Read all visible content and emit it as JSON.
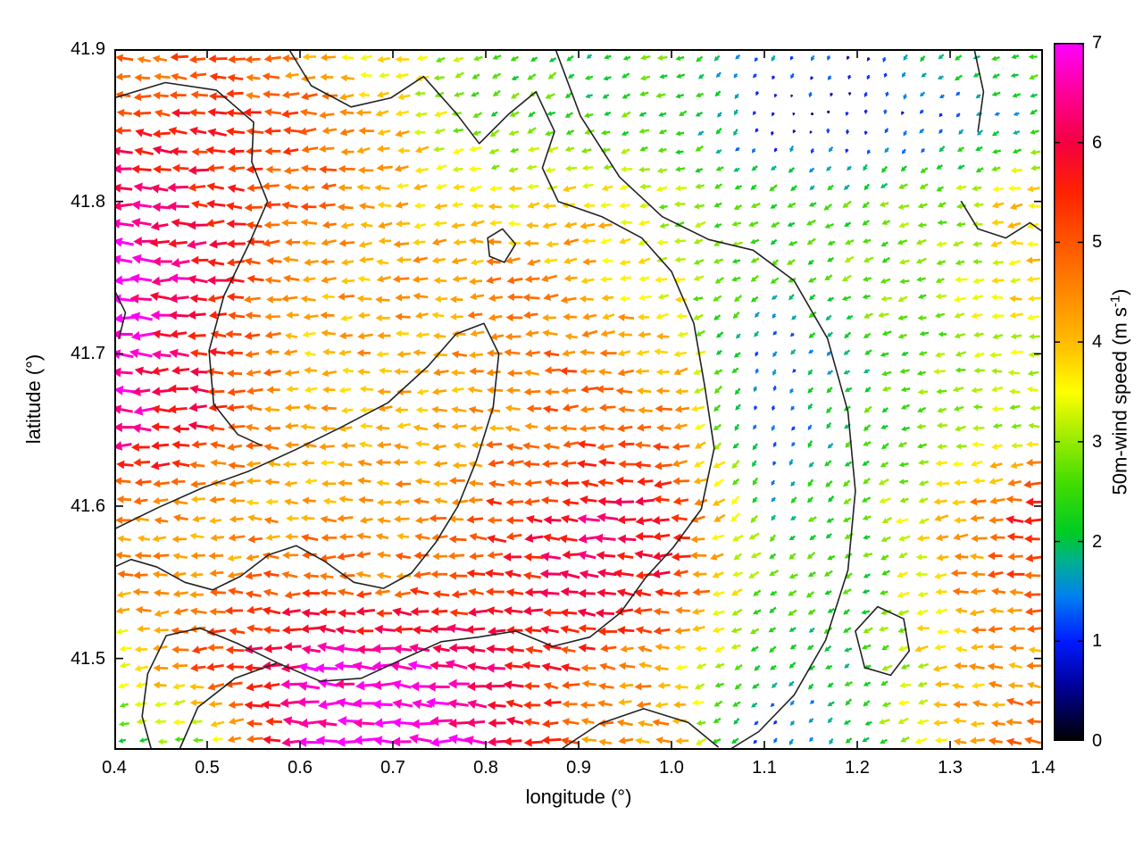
{
  "chart_data": {
    "type": "quiver",
    "title": "",
    "xlabel": "longitude (°)",
    "ylabel": "latitude (°)",
    "xlim": [
      0.4,
      1.4
    ],
    "ylim": [
      41.44,
      41.9
    ],
    "x_ticks": [
      0.4,
      0.5,
      0.6,
      0.7,
      0.8,
      0.9,
      1.0,
      1.1,
      1.2,
      1.3,
      1.4
    ],
    "x_tick_labels": [
      "0.4",
      "0.5",
      "0.6",
      "0.7",
      "0.8",
      "0.9",
      "1.0",
      "1.1",
      "1.2",
      "1.3",
      "1.4"
    ],
    "y_ticks": [
      41.5,
      41.6,
      41.7,
      41.8,
      41.9
    ],
    "y_tick_labels": [
      "41.5",
      "41.6",
      "41.7",
      "41.8",
      "41.9"
    ],
    "grid_on": false,
    "colorbar": {
      "label_main": "50m-wind speed (m s",
      "label_sup": "-1",
      "label_end": ")",
      "min": 0,
      "max": 7,
      "ticks": [
        0,
        1,
        2,
        3,
        4,
        5,
        6,
        7
      ],
      "tick_labels": [
        "0",
        "1",
        "2",
        "3",
        "4",
        "5",
        "6",
        "7"
      ],
      "palette": [
        [
          0.0,
          "#000000"
        ],
        [
          0.55,
          "#000099"
        ],
        [
          1.0,
          "#001aff"
        ],
        [
          1.45,
          "#0080f0"
        ],
        [
          1.8,
          "#00b090"
        ],
        [
          2.1,
          "#00cc22"
        ],
        [
          2.6,
          "#44dd00"
        ],
        [
          3.1,
          "#aaee00"
        ],
        [
          3.5,
          "#ffff00"
        ],
        [
          4.0,
          "#ffbb00"
        ],
        [
          4.5,
          "#ff8800"
        ],
        [
          5.0,
          "#ff5500"
        ],
        [
          5.5,
          "#ff2200"
        ],
        [
          6.0,
          "#f40040"
        ],
        [
          6.5,
          "#ff0099"
        ],
        [
          7.0,
          "#ff00ff"
        ]
      ]
    },
    "grid_lons": [
      0.4,
      0.5,
      0.6,
      0.7,
      0.8,
      0.9,
      1.0,
      1.1,
      1.2,
      1.3,
      1.4
    ],
    "grid_lats": [
      41.9,
      41.85,
      41.8,
      41.75,
      41.7,
      41.65,
      41.6,
      41.55,
      41.5,
      41.45
    ],
    "speed_grid": [
      [
        4.5,
        5.0,
        4.2,
        3.5,
        2.5,
        2.2,
        2.5,
        1.5,
        1.0,
        2.0,
        2.6
      ],
      [
        5.5,
        5.6,
        5.0,
        4.0,
        2.6,
        2.4,
        2.5,
        0.8,
        0.5,
        1.3,
        2.1
      ],
      [
        6.6,
        5.6,
        5.0,
        4.2,
        3.6,
        4.0,
        3.0,
        2.4,
        2.4,
        3.1,
        4.1
      ],
      [
        6.9,
        6.0,
        4.3,
        4.2,
        4.5,
        4.2,
        3.3,
        2.2,
        2.8,
        3.0,
        4.0
      ],
      [
        6.8,
        5.6,
        4.1,
        4.2,
        4.5,
        4.8,
        4.0,
        1.0,
        2.2,
        3.0,
        3.3
      ],
      [
        6.6,
        5.5,
        4.2,
        4.0,
        4.3,
        5.0,
        4.8,
        1.2,
        2.3,
        3.0,
        3.1
      ],
      [
        4.6,
        4.3,
        4.2,
        4.3,
        5.0,
        6.0,
        5.5,
        2.0,
        2.5,
        4.0,
        6.0
      ],
      [
        4.5,
        4.3,
        5.0,
        4.6,
        5.2,
        6.2,
        5.5,
        2.8,
        2.3,
        4.2,
        5.2
      ],
      [
        3.3,
        5.2,
        6.5,
        6.8,
        6.3,
        5.2,
        4.2,
        2.0,
        2.3,
        4.0,
        4.3
      ],
      [
        2.3,
        3.2,
        6.8,
        7.0,
        6.5,
        4.6,
        4.2,
        1.0,
        2.1,
        4.1,
        5.0
      ]
    ],
    "angle_grid": [
      [
        172,
        176,
        180,
        184,
        205,
        215,
        195,
        235,
        255,
        205,
        190
      ],
      [
        174,
        177,
        181,
        186,
        208,
        200,
        196,
        250,
        265,
        225,
        200
      ],
      [
        176,
        179,
        180,
        183,
        186,
        186,
        192,
        205,
        212,
        196,
        184
      ],
      [
        178,
        180,
        180,
        181,
        183,
        186,
        191,
        215,
        202,
        190,
        183
      ],
      [
        180,
        180,
        180,
        180,
        181,
        183,
        186,
        245,
        212,
        190,
        182
      ],
      [
        180,
        180,
        180,
        180,
        180,
        181,
        183,
        252,
        216,
        189,
        181
      ],
      [
        181,
        180,
        179,
        179,
        179,
        178,
        181,
        232,
        211,
        186,
        178
      ],
      [
        183,
        181,
        178,
        178,
        177,
        176,
        179,
        212,
        206,
        183,
        176
      ],
      [
        186,
        183,
        178,
        176,
        175,
        175,
        178,
        222,
        210,
        181,
        175
      ],
      [
        191,
        186,
        181,
        178,
        175,
        176,
        181,
        242,
        221,
        179,
        172
      ]
    ],
    "arrow_cols": 50,
    "arrow_rows": 38,
    "jitter": {
      "speed": 0.45,
      "angle": 12,
      "pos": 4,
      "seed": 42
    },
    "contours": [
      [
        [
          0.4,
          41.868
        ],
        [
          0.455,
          41.878
        ],
        [
          0.51,
          41.873
        ],
        [
          0.55,
          41.852
        ],
        [
          0.548,
          41.826
        ],
        [
          0.565,
          41.8
        ],
        [
          0.545,
          41.772
        ],
        [
          0.518,
          41.738
        ],
        [
          0.502,
          41.702
        ],
        [
          0.507,
          41.667
        ],
        [
          0.533,
          41.647
        ],
        [
          0.558,
          41.64
        ]
      ],
      [
        [
          0.588,
          41.9
        ],
        [
          0.612,
          41.876
        ],
        [
          0.655,
          41.862
        ],
        [
          0.698,
          41.868
        ],
        [
          0.733,
          41.882
        ],
        [
          0.768,
          41.858
        ],
        [
          0.793,
          41.838
        ],
        [
          0.824,
          41.857
        ],
        [
          0.854,
          41.872
        ],
        [
          0.874,
          41.846
        ],
        [
          0.861,
          41.822
        ],
        [
          0.878,
          41.8
        ],
        [
          0.925,
          41.79
        ],
        [
          0.968,
          41.776
        ],
        [
          1.0,
          41.754
        ],
        [
          1.024,
          41.72
        ],
        [
          1.036,
          41.678
        ],
        [
          1.046,
          41.638
        ],
        [
          1.032,
          41.598
        ],
        [
          1.002,
          41.573
        ],
        [
          0.972,
          41.553
        ],
        [
          0.945,
          41.53
        ],
        [
          0.912,
          41.514
        ],
        [
          0.872,
          41.508
        ],
        [
          0.832,
          41.518
        ],
        [
          0.792,
          41.514
        ],
        [
          0.752,
          41.511
        ],
        [
          0.712,
          41.5
        ],
        [
          0.666,
          41.487
        ],
        [
          0.622,
          41.485
        ],
        [
          0.576,
          41.497
        ],
        [
          0.532,
          41.51
        ],
        [
          0.492,
          41.52
        ],
        [
          0.456,
          41.515
        ],
        [
          0.436,
          41.49
        ],
        [
          0.43,
          41.462
        ],
        [
          0.44,
          41.44
        ]
      ],
      [
        [
          0.4,
          41.585
        ],
        [
          0.447,
          41.599
        ],
        [
          0.495,
          41.612
        ],
        [
          0.545,
          41.623
        ],
        [
          0.595,
          41.637
        ],
        [
          0.645,
          41.652
        ],
        [
          0.695,
          41.668
        ],
        [
          0.738,
          41.692
        ],
        [
          0.768,
          41.713
        ],
        [
          0.798,
          41.72
        ],
        [
          0.814,
          41.7
        ],
        [
          0.808,
          41.665
        ],
        [
          0.79,
          41.63
        ],
        [
          0.77,
          41.6
        ],
        [
          0.746,
          41.576
        ],
        [
          0.72,
          41.556
        ],
        [
          0.69,
          41.546
        ],
        [
          0.658,
          41.55
        ],
        [
          0.626,
          41.564
        ],
        [
          0.596,
          41.574
        ],
        [
          0.566,
          41.568
        ],
        [
          0.536,
          41.554
        ],
        [
          0.506,
          41.545
        ],
        [
          0.476,
          41.55
        ],
        [
          0.446,
          41.56
        ],
        [
          0.418,
          41.565
        ],
        [
          0.4,
          41.56
        ]
      ],
      [
        [
          0.875,
          41.9
        ],
        [
          0.902,
          41.856
        ],
        [
          0.944,
          41.816
        ],
        [
          0.99,
          41.79
        ],
        [
          1.04,
          41.775
        ],
        [
          1.088,
          41.768
        ],
        [
          1.132,
          41.748
        ],
        [
          1.168,
          41.71
        ],
        [
          1.19,
          41.662
        ],
        [
          1.198,
          41.61
        ],
        [
          1.19,
          41.558
        ],
        [
          1.166,
          41.512
        ],
        [
          1.132,
          41.476
        ],
        [
          1.094,
          41.452
        ],
        [
          1.062,
          41.44
        ]
      ],
      [
        [
          1.198,
          41.518
        ],
        [
          1.222,
          41.534
        ],
        [
          1.25,
          41.526
        ],
        [
          1.256,
          41.505
        ],
        [
          1.236,
          41.489
        ],
        [
          1.208,
          41.494
        ],
        [
          1.198,
          41.518
        ]
      ],
      [
        [
          1.312,
          41.8
        ],
        [
          1.33,
          41.782
        ],
        [
          1.36,
          41.776
        ],
        [
          1.386,
          41.786
        ],
        [
          1.4,
          41.78
        ]
      ],
      [
        [
          0.802,
          41.776
        ],
        [
          0.818,
          41.782
        ],
        [
          0.832,
          41.772
        ],
        [
          0.82,
          41.76
        ],
        [
          0.804,
          41.764
        ],
        [
          0.802,
          41.776
        ]
      ],
      [
        [
          0.47,
          41.44
        ],
        [
          0.49,
          41.468
        ],
        [
          0.53,
          41.487
        ],
        [
          0.575,
          41.497
        ]
      ],
      [
        [
          0.88,
          41.44
        ],
        [
          0.922,
          41.457
        ],
        [
          0.97,
          41.467
        ],
        [
          1.018,
          41.458
        ],
        [
          1.05,
          41.442
        ]
      ],
      [
        [
          1.326,
          41.9
        ],
        [
          1.336,
          41.872
        ],
        [
          1.33,
          41.846
        ]
      ],
      [
        [
          0.4,
          41.742
        ],
        [
          0.412,
          41.727
        ],
        [
          0.405,
          41.71
        ]
      ]
    ]
  }
}
